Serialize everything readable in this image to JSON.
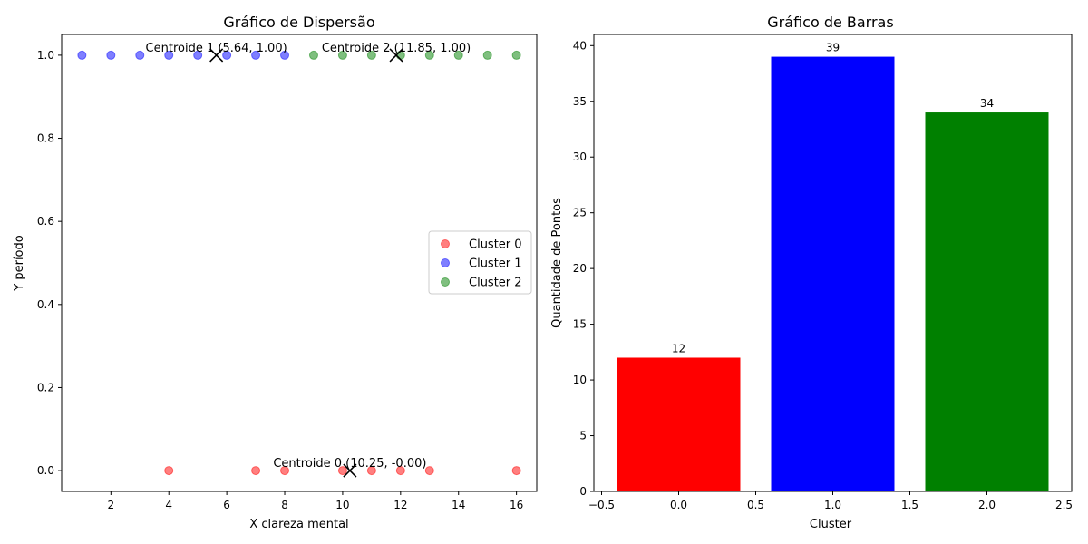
{
  "figure": {
    "left": {
      "title": "Gráfico de Dispersão",
      "xlabel": "X clareza mental",
      "ylabel": "Y período"
    },
    "right": {
      "title": "Gráfico de Barras",
      "xlabel": "Cluster",
      "ylabel": "Quantidade de Pontos"
    }
  },
  "chart_data": [
    {
      "type": "scatter",
      "title": "Gráfico de Dispersão",
      "xlabel": "X clareza mental",
      "ylabel": "Y período",
      "xlim": [
        0.3,
        16.7
      ],
      "ylim": [
        -0.05,
        1.05
      ],
      "xticks": [
        2,
        4,
        6,
        8,
        10,
        12,
        14,
        16
      ],
      "yticks": [
        0.0,
        0.2,
        0.4,
        0.6,
        0.8,
        1.0
      ],
      "grid": false,
      "legend_position": "center-right",
      "series": [
        {
          "name": "Cluster 0",
          "color": "#ff0000",
          "x": [
            4,
            7,
            8,
            10,
            11,
            12,
            13,
            16
          ],
          "y": [
            0,
            0,
            0,
            0,
            0,
            0,
            0,
            0
          ]
        },
        {
          "name": "Cluster 1",
          "color": "#0000ff",
          "x": [
            1,
            2,
            3,
            4,
            5,
            6,
            7,
            8
          ],
          "y": [
            1,
            1,
            1,
            1,
            1,
            1,
            1,
            1
          ]
        },
        {
          "name": "Cluster 2",
          "color": "#008000",
          "x": [
            9,
            10,
            11,
            12,
            13,
            14,
            15,
            16
          ],
          "y": [
            1,
            1,
            1,
            1,
            1,
            1,
            1,
            1
          ]
        }
      ],
      "centroids": [
        {
          "x": 10.25,
          "y": 0.0,
          "label": "Centroide 0 (10.25, -0.00)"
        },
        {
          "x": 5.64,
          "y": 1.0,
          "label": "Centroide 1 (5.64, 1.00)"
        },
        {
          "x": 11.85,
          "y": 1.0,
          "label": "Centroide 2 (11.85, 1.00)"
        }
      ]
    },
    {
      "type": "bar",
      "title": "Gráfico de Barras",
      "xlabel": "Cluster",
      "ylabel": "Quantidade de Pontos",
      "x": [
        0,
        1,
        2
      ],
      "values": [
        12,
        39,
        34
      ],
      "colors": [
        "#ff0000",
        "#0000ff",
        "#008000"
      ],
      "xlim": [
        -0.55,
        2.55
      ],
      "ylim": [
        0,
        41
      ],
      "xticks": [
        -0.5,
        0.0,
        0.5,
        1.0,
        1.5,
        2.0,
        2.5
      ],
      "yticks": [
        0,
        5,
        10,
        15,
        20,
        25,
        30,
        35,
        40
      ],
      "bar_width": 0.8,
      "grid": false
    }
  ]
}
